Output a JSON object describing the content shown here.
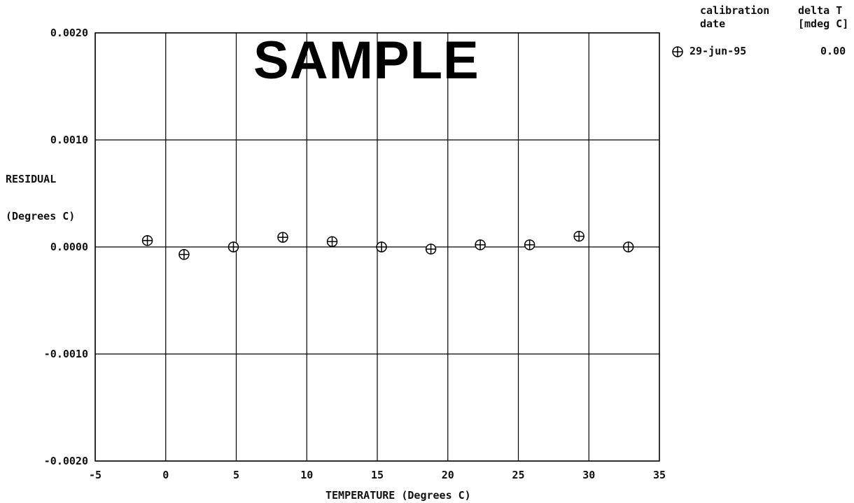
{
  "watermark": "SAMPLE",
  "legend": {
    "header_left_line1": "calibration",
    "header_left_line2": "date",
    "header_right_line1": "delta T",
    "header_right_line2": "[mdeg C]",
    "entry_date": "29-jun-95",
    "entry_delta": "0.00",
    "marker_icon": "circle-plus-icon"
  },
  "chart_data": {
    "type": "scatter",
    "xlabel": "TEMPERATURE (Degrees C)",
    "ylabel_line1": "RESIDUAL",
    "ylabel_line2": "(Degrees C)",
    "xlim": [
      -5,
      35
    ],
    "ylim": [
      -0.002,
      0.002
    ],
    "x_ticks": [
      -5,
      0,
      5,
      10,
      15,
      20,
      25,
      30,
      35
    ],
    "x_tick_labels": [
      "-5",
      "0",
      "5",
      "10",
      "15",
      "20",
      "25",
      "30",
      "35"
    ],
    "y_ticks": [
      -0.002,
      -0.001,
      0.0,
      0.001,
      0.002
    ],
    "y_tick_labels": [
      "-0.0020",
      "-0.0010",
      "0.0000",
      "0.0010",
      "0.0020"
    ],
    "grid": true,
    "legend_position": "top-right outside",
    "series": [
      {
        "name": "29-jun-95",
        "marker": "circle-plus",
        "x": [
          -1.3,
          1.3,
          4.8,
          8.3,
          11.8,
          15.3,
          18.8,
          22.3,
          25.8,
          29.3,
          32.8
        ],
        "y": [
          6e-05,
          -7e-05,
          0.0,
          9e-05,
          5e-05,
          0.0,
          -2e-05,
          2e-05,
          2e-05,
          0.0001,
          0.0
        ]
      }
    ]
  }
}
